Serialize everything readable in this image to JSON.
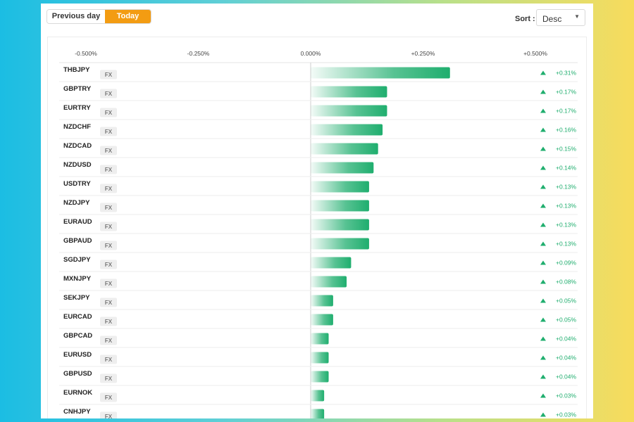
{
  "toggle": {
    "previous_label": "Previous day",
    "today_label": "Today",
    "active": "Today"
  },
  "sort": {
    "label": "Sort :",
    "value": "Desc"
  },
  "colors": {
    "accent": "#f39c12",
    "bar": "#1fae6e",
    "positive": "#1fae6e",
    "tag_bg": "#eeeeee"
  },
  "chart_data": {
    "type": "bar",
    "orientation": "horizontal",
    "x_ticks": [
      "-0.500%",
      "-0.250%",
      "0.000%",
      "+0.250%",
      "+0.500%"
    ],
    "xlim": [
      -0.5,
      0.5
    ],
    "rows": [
      {
        "symbol": "THBJPY",
        "tag": "FX",
        "value": 0.31,
        "label": "+0.31%"
      },
      {
        "symbol": "GBPTRY",
        "tag": "FX",
        "value": 0.17,
        "label": "+0.17%"
      },
      {
        "symbol": "EURTRY",
        "tag": "FX",
        "value": 0.17,
        "label": "+0.17%"
      },
      {
        "symbol": "NZDCHF",
        "tag": "FX",
        "value": 0.16,
        "label": "+0.16%"
      },
      {
        "symbol": "NZDCAD",
        "tag": "FX",
        "value": 0.15,
        "label": "+0.15%"
      },
      {
        "symbol": "NZDUSD",
        "tag": "FX",
        "value": 0.14,
        "label": "+0.14%"
      },
      {
        "symbol": "USDTRY",
        "tag": "FX",
        "value": 0.13,
        "label": "+0.13%"
      },
      {
        "symbol": "NZDJPY",
        "tag": "FX",
        "value": 0.13,
        "label": "+0.13%"
      },
      {
        "symbol": "EURAUD",
        "tag": "FX",
        "value": 0.13,
        "label": "+0.13%"
      },
      {
        "symbol": "GBPAUD",
        "tag": "FX",
        "value": 0.13,
        "label": "+0.13%"
      },
      {
        "symbol": "SGDJPY",
        "tag": "FX",
        "value": 0.09,
        "label": "+0.09%"
      },
      {
        "symbol": "MXNJPY",
        "tag": "FX",
        "value": 0.08,
        "label": "+0.08%"
      },
      {
        "symbol": "SEKJPY",
        "tag": "FX",
        "value": 0.05,
        "label": "+0.05%"
      },
      {
        "symbol": "EURCAD",
        "tag": "FX",
        "value": 0.05,
        "label": "+0.05%"
      },
      {
        "symbol": "GBPCAD",
        "tag": "FX",
        "value": 0.04,
        "label": "+0.04%"
      },
      {
        "symbol": "EURUSD",
        "tag": "FX",
        "value": 0.04,
        "label": "+0.04%"
      },
      {
        "symbol": "GBPUSD",
        "tag": "FX",
        "value": 0.04,
        "label": "+0.04%"
      },
      {
        "symbol": "EURNOK",
        "tag": "FX",
        "value": 0.03,
        "label": "+0.03%"
      },
      {
        "symbol": "CNHJPY",
        "tag": "FX",
        "value": 0.03,
        "label": "+0.03%"
      }
    ]
  }
}
